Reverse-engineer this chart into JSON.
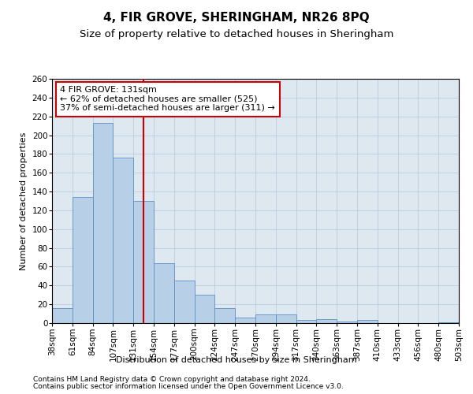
{
  "title": "4, FIR GROVE, SHERINGHAM, NR26 8PQ",
  "subtitle": "Size of property relative to detached houses in Sheringham",
  "xlabel": "Distribution of detached houses by size in Sheringham",
  "ylabel": "Number of detached properties",
  "bar_values": [
    16,
    134,
    213,
    176,
    130,
    64,
    45,
    30,
    16,
    6,
    9,
    9,
    3,
    4,
    2,
    3,
    0,
    0,
    0,
    1
  ],
  "categories": [
    "38sqm",
    "61sqm",
    "84sqm",
    "107sqm",
    "131sqm",
    "154sqm",
    "177sqm",
    "200sqm",
    "224sqm",
    "247sqm",
    "270sqm",
    "294sqm",
    "317sqm",
    "340sqm",
    "363sqm",
    "387sqm",
    "410sqm",
    "433sqm",
    "456sqm",
    "480sqm",
    "503sqm"
  ],
  "bar_color": "#b8cfe8",
  "bar_edge_color": "#6090c0",
  "reference_line_color": "#cc0000",
  "ylim": [
    0,
    260
  ],
  "yticks": [
    0,
    20,
    40,
    60,
    80,
    100,
    120,
    140,
    160,
    180,
    200,
    220,
    240,
    260
  ],
  "annotation_text": "4 FIR GROVE: 131sqm\n← 62% of detached houses are smaller (525)\n37% of semi-detached houses are larger (311) →",
  "annotation_box_color": "#ffffff",
  "annotation_box_edge": "#cc0000",
  "footer1": "Contains HM Land Registry data © Crown copyright and database right 2024.",
  "footer2": "Contains public sector information licensed under the Open Government Licence v3.0.",
  "bg_color": "#ffffff",
  "plot_bg_color": "#dde8f0",
  "grid_color": "#b8cce0",
  "title_fontsize": 11,
  "subtitle_fontsize": 9.5,
  "axis_label_fontsize": 8,
  "tick_fontsize": 7.5,
  "annotation_fontsize": 8,
  "footer_fontsize": 6.5
}
